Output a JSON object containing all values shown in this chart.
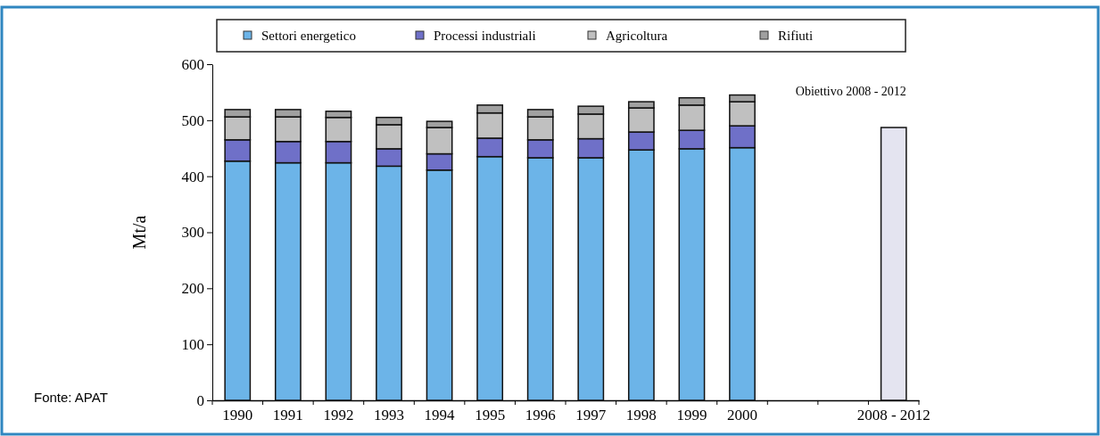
{
  "chart_data": {
    "type": "bar",
    "stacked": true,
    "ylabel": "Mt/a",
    "categories": [
      "1990",
      "1991",
      "1992",
      "1993",
      "1994",
      "1995",
      "1996",
      "1997",
      "1998",
      "1999",
      "2000",
      null,
      null,
      "2008 - 2012"
    ],
    "series": [
      {
        "name": "Settori energetico",
        "color": "#6cb4e8",
        "values": [
          427,
          424,
          424,
          418,
          411,
          435,
          433,
          433,
          447,
          449,
          451,
          null,
          null,
          null
        ]
      },
      {
        "name": "Processi industriali",
        "color": "#6f70c8",
        "values": [
          38,
          38,
          38,
          31,
          29,
          33,
          32,
          34,
          32,
          33,
          39,
          null,
          null,
          null
        ]
      },
      {
        "name": "Agricoltura",
        "color": "#c0c0c0",
        "values": [
          41,
          44,
          43,
          43,
          47,
          45,
          41,
          44,
          43,
          45,
          43,
          null,
          null,
          null
        ]
      },
      {
        "name": "Rifiuti",
        "color": "#a0a0a0",
        "values": [
          13,
          13,
          11,
          13,
          11,
          14,
          13,
          14,
          11,
          13,
          12,
          null,
          null,
          null
        ]
      },
      {
        "color": "#e4e4f0",
        "values": [
          null,
          null,
          null,
          null,
          null,
          null,
          null,
          null,
          null,
          null,
          null,
          null,
          null,
          487
        ]
      }
    ],
    "ylim": [
      0,
      600
    ],
    "yticks": [
      0,
      100,
      200,
      300,
      400,
      500,
      600
    ],
    "grid": false,
    "legend": "top",
    "annotations": [
      "Obiettivo 2008 - 2012",
      "Fonte: APAT"
    ]
  }
}
